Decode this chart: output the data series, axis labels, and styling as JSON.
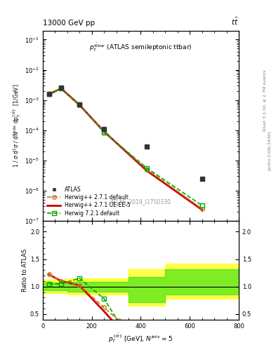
{
  "title_top": "13000 GeV pp",
  "title_right": "t$\\bar{t}$",
  "plot_title": "$p_T^{t\\bar{t}bar}$ (ATLAS semileptonic ttbar)",
  "watermark": "ATLAS_2019_I1750330",
  "right_label_1": "Rivet 3.1.10, ≥ 2.7M events",
  "right_label_2": "[arXiv:1306.3436]",
  "xlabel": "$p^{\\{t\\bar{t}\\}}_T$ [GeV], $N^{jets}$ = 5",
  "ylabel": "1 / $\\sigma$ d$^2\\sigma$ / dN$^{obs}$ dp$^{\\{t\\bar{t}\\}}_T$  [1/GeV]",
  "ylabel_ratio": "Ratio to ATLAS",
  "atlas_x": [
    25,
    75,
    150,
    250,
    425,
    650
  ],
  "atlas_y": [
    0.0016,
    0.0025,
    0.0007,
    0.00011,
    2.8e-05,
    2.5e-06
  ],
  "hw271_x": [
    25,
    75,
    150,
    250,
    425,
    650
  ],
  "hw271_y": [
    0.00155,
    0.0024,
    0.00068,
    9e-05,
    5e-06,
    2.5e-07
  ],
  "hw271ue_x": [
    25,
    75,
    150,
    250,
    425,
    650
  ],
  "hw271ue_y": [
    0.00155,
    0.0024,
    0.00068,
    9e-05,
    4.5e-06,
    2.3e-07
  ],
  "hw721_x": [
    25,
    75,
    150,
    250,
    425,
    650
  ],
  "hw721_y": [
    0.00155,
    0.00245,
    0.0007,
    8.5e-05,
    5.5e-06,
    3.2e-07
  ],
  "ratio_hw271_x": [
    25,
    75,
    150,
    250,
    310
  ],
  "ratio_hw271_y": [
    1.22,
    1.1,
    1.02,
    0.62,
    0.38
  ],
  "ratio_hw271ue_x": [
    25,
    75,
    150,
    250,
    310
  ],
  "ratio_hw271ue_y": [
    1.22,
    1.1,
    1.02,
    0.55,
    0.25
  ],
  "ratio_hw721_x": [
    25,
    75,
    150,
    250,
    310
  ],
  "ratio_hw721_y": [
    1.05,
    1.05,
    1.15,
    0.78,
    0.35
  ],
  "color_atlas": "#333333",
  "color_hw271": "#cc7722",
  "color_hw271ue": "#cc0000",
  "color_hw721": "#00aa00",
  "ylim_main": [
    1e-07,
    0.2
  ],
  "xlim": [
    0,
    800
  ],
  "ylim_ratio": [
    0.4,
    2.2
  ],
  "ratio_yticks": [
    0.5,
    1.0,
    1.5,
    2.0
  ],
  "band_x": [
    0,
    100,
    100,
    350,
    350,
    500,
    500,
    800
  ],
  "band_yellow_lo": [
    0.88,
    0.88,
    0.85,
    0.85,
    0.65,
    0.65,
    0.78,
    0.78
  ],
  "band_yellow_hi": [
    1.12,
    1.12,
    1.15,
    1.15,
    1.32,
    1.32,
    1.42,
    1.42
  ],
  "band_green_lo": [
    0.93,
    0.93,
    0.91,
    0.91,
    0.72,
    0.72,
    0.85,
    0.85
  ],
  "band_green_hi": [
    1.07,
    1.07,
    1.09,
    1.09,
    1.18,
    1.18,
    1.32,
    1.32
  ]
}
